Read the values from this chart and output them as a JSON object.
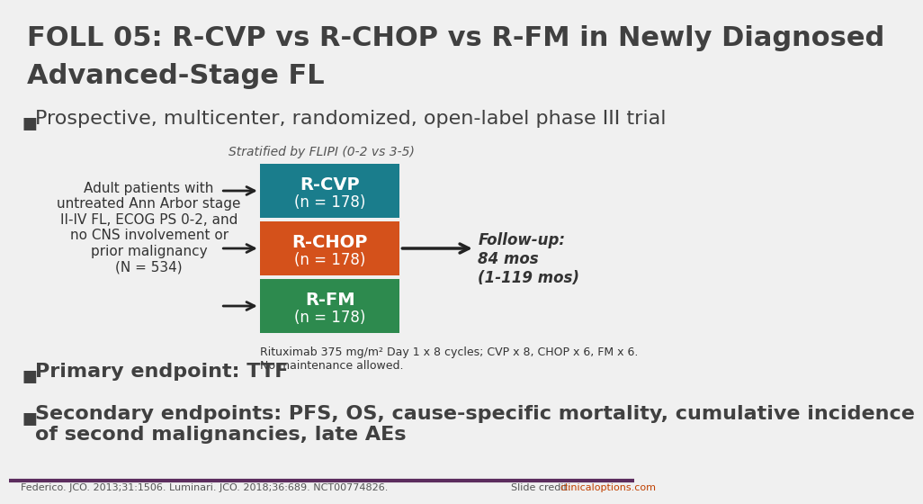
{
  "title_line1": "FOLL 05: R-CVP vs R-CHOP vs R-FM in Newly Diagnosed",
  "title_line2": "Advanced-Stage FL",
  "title_color": "#404040",
  "background_color": "#f0f0f0",
  "bullet1": "Prospective, multicenter, randomized, open-label phase III trial",
  "stratified_label": "Stratified by FLIPI (0-2 vs 3-5)",
  "patient_box_text": "Adult patients with\nuntreated Ann Arbor stage\nII-IV FL, ECOG PS 0-2, and\nno CNS involvement or\nprior malignancy\n(N = 534)",
  "arm1_label": "R-CVP",
  "arm1_sublabel": "(n = 178)",
  "arm1_color": "#1a7d8c",
  "arm2_label": "R-CHOP",
  "arm2_sublabel": "(n = 178)",
  "arm2_color": "#d4511b",
  "arm3_label": "R-FM",
  "arm3_sublabel": "(n = 178)",
  "arm3_color": "#2d8a4e",
  "followup_text": "Follow-up:\n84 mos\n(1-119 mos)",
  "rituximab_note": "Rituximab 375 mg/m² Day 1 x 8 cycles; CVP x 8, CHOP x 6, FM x 6.\nNo maintenance allowed.",
  "bullet2": "Primary endpoint: TTF",
  "bullet3_line1": "Secondary endpoints: PFS, OS, cause-specific mortality, cumulative incidence",
  "bullet3_line2": "of second malignancies, late AEs",
  "footer_left": "Federico. JCO. 2013;31:1506. Luminari. JCO. 2018;36:689. NCT00774826.",
  "footer_slide_credit": "Slide credit: ",
  "footer_link": "clinicaloptions.com",
  "footer_link_color": "#c04000",
  "footer_line_color": "#5c2d5e",
  "bullet_color": "#404040",
  "arrow_color": "#222222"
}
